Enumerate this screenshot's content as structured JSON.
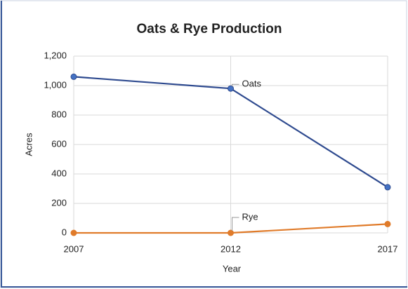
{
  "chart_data": {
    "type": "line",
    "title": "Oats & Rye Production",
    "xlabel": "Year",
    "ylabel": "Acres",
    "categories": [
      "2007",
      "2012",
      "2017"
    ],
    "series": [
      {
        "name": "Oats",
        "color": "#2e4a8f",
        "values": [
          1060,
          980,
          310
        ]
      },
      {
        "name": "Rye",
        "color": "#e07b2a",
        "values": [
          0,
          0,
          60
        ]
      }
    ],
    "ylim": [
      0,
      1200
    ],
    "yticks": [
      0,
      200,
      400,
      600,
      800,
      {
        "value": 1000,
        "label": "1,000"
      },
      {
        "value": 1200,
        "label": "1,200"
      }
    ],
    "grid": true
  }
}
